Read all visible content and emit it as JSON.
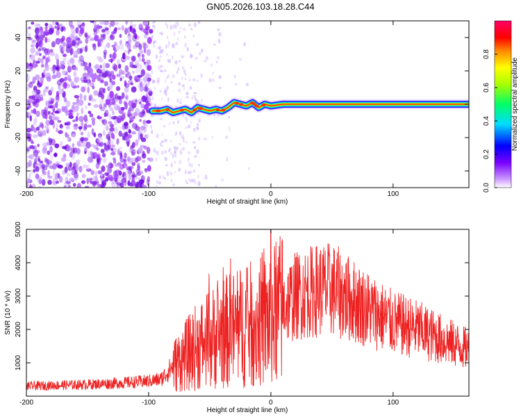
{
  "title": "GN05.2026.103.18.28.C44",
  "chart_data": [
    {
      "type": "heatmap",
      "xlabel": "Height of straight line (km)",
      "ylabel": "Frequency (Hz)",
      "xlim": [
        -200,
        162
      ],
      "ylim": [
        -50,
        50
      ],
      "xticks": [
        -200,
        -100,
        0,
        100
      ],
      "yticks": [
        -40,
        -20,
        0,
        20,
        40
      ],
      "track": {
        "x": [
          -97,
          -90,
          -85,
          -80,
          -75,
          -70,
          -65,
          -60,
          -55,
          -50,
          -45,
          -40,
          -35,
          -30,
          -25,
          -20,
          -15,
          -10,
          -5,
          0,
          10,
          50,
          100,
          162
        ],
        "y": [
          -4,
          -4,
          -3,
          -5,
          -4,
          -3,
          -5,
          -2,
          -3,
          -4,
          -3,
          -4,
          -2,
          1,
          0,
          -1,
          1,
          -2,
          0,
          -1,
          0,
          0,
          0,
          0
        ]
      },
      "colorbar": {
        "label": "Normalized spectral amplitude",
        "ticks": [
          "0.0",
          "0.2",
          "0.4",
          "0.6",
          "0.8"
        ],
        "range": [
          0,
          1
        ]
      }
    },
    {
      "type": "line",
      "xlabel": "Height of straight line (km)",
      "ylabel": "SNR (10 * v/v)",
      "xlim": [
        -200,
        162
      ],
      "ylim": [
        0,
        5000
      ],
      "xticks": [
        -200,
        -100,
        0,
        100
      ],
      "yticks": [
        1000,
        2000,
        3000,
        4000,
        5000
      ],
      "color": "#ee2222",
      "envelope": {
        "x": [
          -200,
          -150,
          -120,
          -100,
          -90,
          -80,
          -70,
          -60,
          -50,
          -40,
          -30,
          -20,
          -10,
          0,
          10,
          20,
          30,
          40,
          50,
          60,
          80,
          100,
          120,
          140,
          162
        ],
        "mean": [
          300,
          350,
          400,
          450,
          500,
          900,
          1200,
          1500,
          1700,
          1900,
          2000,
          2100,
          2200,
          2300,
          2700,
          3000,
          3100,
          3200,
          3200,
          3000,
          2600,
          2200,
          2000,
          1700,
          1400
        ]
      }
    }
  ]
}
